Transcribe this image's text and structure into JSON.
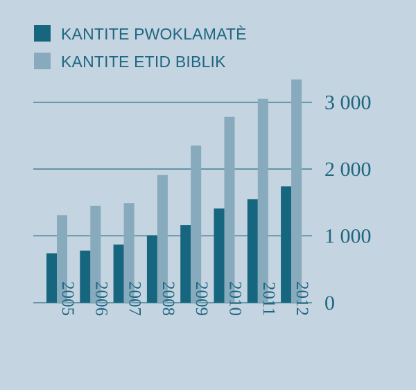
{
  "chart_data": {
    "type": "bar",
    "categories": [
      "2005",
      "2006",
      "2007",
      "2008",
      "2009",
      "2010",
      "2011",
      "2012"
    ],
    "series": [
      {
        "name": "KANTITE PWOKLAMATÈ",
        "values": [
          740,
          780,
          870,
          1010,
          1160,
          1410,
          1550,
          1740
        ],
        "color": "#176680"
      },
      {
        "name": "KANTITE ETID BIBLIK",
        "values": [
          1310,
          1450,
          1490,
          1910,
          2350,
          2780,
          3050,
          3340
        ],
        "color": "#87aabc"
      }
    ],
    "yticks": [
      0,
      1000,
      2000,
      3000
    ],
    "ytick_labels": [
      "0",
      "1 000",
      "2 000",
      "3 000"
    ],
    "ylim": [
      0,
      3400
    ],
    "grid": true,
    "legend_position": "top-left",
    "axis_side": "right"
  }
}
